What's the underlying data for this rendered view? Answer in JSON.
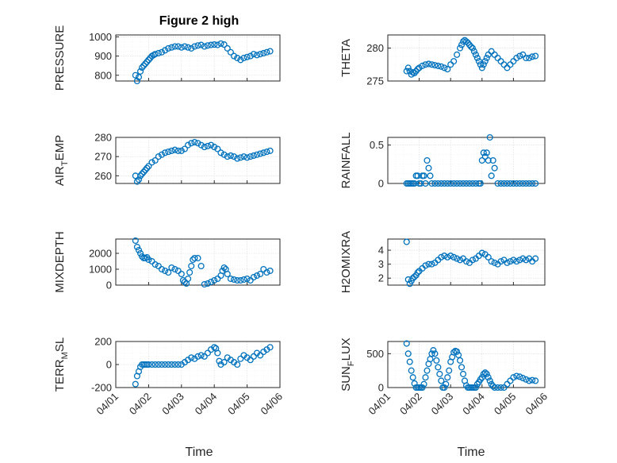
{
  "title": "Figure 2 high",
  "colors": {
    "marker": "#0072BD",
    "axis": "#262626",
    "grid": "#d9d9d9"
  },
  "chart_data": {
    "type": "scatter",
    "marker": "circle",
    "xlabel": "Time",
    "xlim": [
      0,
      5
    ],
    "x_ticks": [
      0,
      1,
      2,
      3,
      4,
      5
    ],
    "x_tick_labels": [
      "04/01",
      "04/02",
      "04/03",
      "04/04",
      "04/05",
      "04/06"
    ],
    "panels": [
      {
        "id": "pressure",
        "ylabel": "PRESSURE",
        "ylabel_sub": "",
        "ylabel_rest": "",
        "ylim": [
          770,
          1010
        ],
        "y_ticks": [
          800,
          900,
          1000
        ],
        "y_tick_labels": [
          "800",
          "900",
          "1000"
        ],
        "x": [
          0.6,
          0.65,
          0.7,
          0.75,
          0.8,
          0.85,
          0.9,
          0.95,
          1.0,
          1.05,
          1.1,
          1.15,
          1.2,
          1.3,
          1.4,
          1.5,
          1.6,
          1.7,
          1.8,
          1.9,
          2.0,
          2.1,
          2.2,
          2.3,
          2.4,
          2.5,
          2.6,
          2.7,
          2.8,
          2.9,
          3.0,
          3.1,
          3.2,
          3.3,
          3.4,
          3.5,
          3.6,
          3.7,
          3.8,
          3.9,
          4.0,
          4.1,
          4.2,
          4.3,
          4.4,
          4.5,
          4.6,
          4.7
        ],
        "y": [
          800,
          770,
          790,
          820,
          840,
          850,
          860,
          870,
          880,
          890,
          900,
          905,
          910,
          915,
          920,
          930,
          940,
          945,
          950,
          950,
          945,
          950,
          945,
          940,
          950,
          955,
          958,
          950,
          955,
          958,
          960,
          958,
          965,
          960,
          940,
          920,
          900,
          890,
          880,
          890,
          895,
          900,
          910,
          905,
          910,
          915,
          920,
          925
        ]
      },
      {
        "id": "theta",
        "ylabel": "THETA",
        "ylabel_sub": "",
        "ylabel_rest": "",
        "ylim": [
          275,
          282
        ],
        "y_ticks": [
          275,
          280
        ],
        "y_tick_labels": [
          "275",
          "280"
        ],
        "x": [
          0.6,
          0.65,
          0.7,
          0.75,
          0.8,
          0.85,
          0.9,
          0.95,
          1.0,
          1.1,
          1.2,
          1.3,
          1.4,
          1.5,
          1.6,
          1.7,
          1.8,
          1.9,
          2.0,
          2.1,
          2.2,
          2.3,
          2.35,
          2.4,
          2.45,
          2.5,
          2.55,
          2.6,
          2.65,
          2.7,
          2.75,
          2.8,
          2.85,
          2.9,
          2.95,
          3.0,
          3.05,
          3.1,
          3.15,
          3.2,
          3.3,
          3.4,
          3.5,
          3.6,
          3.7,
          3.8,
          3.9,
          4.0,
          4.1,
          4.2,
          4.3,
          4.4,
          4.5,
          4.6,
          4.7
        ],
        "y": [
          276.5,
          277,
          276.5,
          276,
          276.3,
          276.2,
          276.5,
          276.8,
          277,
          277.3,
          277.5,
          277.6,
          277.5,
          277.4,
          277.3,
          277.2,
          277,
          276.8,
          277.5,
          278,
          279,
          280,
          280.5,
          281,
          281.2,
          281,
          280.8,
          280.5,
          280.2,
          280,
          279.5,
          279,
          278.5,
          278,
          277.5,
          277,
          277.5,
          278,
          278.5,
          279,
          279.5,
          279,
          278.5,
          278,
          277.5,
          277,
          277.5,
          278,
          278.5,
          278.8,
          279,
          278.5,
          278.5,
          278.7,
          278.8
        ]
      },
      {
        "id": "air-temp",
        "ylabel": "AIR",
        "ylabel_sub": "T",
        "ylabel_rest": "EMP",
        "ylim": [
          256,
          280
        ],
        "y_ticks": [
          260,
          270,
          280
        ],
        "y_tick_labels": [
          "260",
          "270",
          "280"
        ],
        "x": [
          0.6,
          0.65,
          0.7,
          0.75,
          0.8,
          0.85,
          0.9,
          0.95,
          1.0,
          1.1,
          1.2,
          1.3,
          1.4,
          1.5,
          1.6,
          1.7,
          1.8,
          1.9,
          2.0,
          2.1,
          2.2,
          2.3,
          2.4,
          2.5,
          2.6,
          2.7,
          2.8,
          2.9,
          3.0,
          3.1,
          3.2,
          3.3,
          3.4,
          3.5,
          3.6,
          3.7,
          3.8,
          3.9,
          4.0,
          4.1,
          4.2,
          4.3,
          4.4,
          4.5,
          4.6,
          4.7
        ],
        "y": [
          260,
          257,
          258,
          260,
          261,
          262,
          263,
          264,
          265,
          267,
          268,
          270,
          271,
          272,
          272.5,
          273,
          273.5,
          273,
          273,
          274,
          276,
          277,
          277.5,
          277,
          276,
          275,
          275.5,
          276,
          275,
          274,
          272,
          271,
          270,
          270.5,
          270,
          269,
          269.5,
          270,
          269.5,
          270,
          270.5,
          271,
          271.5,
          272,
          272.5,
          273
        ]
      },
      {
        "id": "rainfall",
        "ylabel": "RAINFALL",
        "ylabel_sub": "",
        "ylabel_rest": "",
        "ylim": [
          0,
          0.6
        ],
        "y_ticks": [
          0,
          0.5
        ],
        "y_tick_labels": [
          "0",
          "0.5"
        ],
        "x": [
          0.6,
          0.65,
          0.7,
          0.75,
          0.8,
          0.85,
          0.9,
          0.95,
          1.0,
          1.05,
          1.1,
          1.15,
          1.2,
          1.25,
          1.3,
          1.35,
          1.4,
          1.5,
          1.6,
          1.7,
          1.8,
          1.9,
          2.0,
          2.1,
          2.2,
          2.3,
          2.4,
          2.5,
          2.6,
          2.7,
          2.8,
          2.9,
          2.95,
          3.0,
          3.05,
          3.1,
          3.15,
          3.2,
          3.25,
          3.3,
          3.35,
          3.4,
          3.5,
          3.6,
          3.7,
          3.8,
          3.9,
          4.0,
          4.1,
          4.2,
          4.3,
          4.4,
          4.5,
          4.6,
          4.7
        ],
        "y": [
          0,
          0,
          0,
          0,
          0,
          0,
          0.1,
          0.1,
          0,
          0,
          0.1,
          0.1,
          0,
          0.3,
          0.2,
          0.1,
          0,
          0,
          0,
          0,
          0,
          0,
          0,
          0,
          0,
          0,
          0,
          0,
          0,
          0,
          0,
          0,
          0,
          0.3,
          0.4,
          0.35,
          0.4,
          0.3,
          0.6,
          0.1,
          0.3,
          0.2,
          0,
          0,
          0,
          0,
          0,
          0,
          0,
          0,
          0,
          0,
          0,
          0,
          0
        ]
      },
      {
        "id": "mixdepth",
        "ylabel": "MIXDEPTH",
        "ylabel_sub": "",
        "ylabel_rest": "",
        "ylim": [
          0,
          2900
        ],
        "y_ticks": [
          0,
          1000,
          2000
        ],
        "y_tick_labels": [
          "0",
          "1000",
          "2000"
        ],
        "x": [
          0.6,
          0.65,
          0.7,
          0.75,
          0.8,
          0.85,
          0.9,
          0.95,
          1.0,
          1.1,
          1.2,
          1.3,
          1.4,
          1.5,
          1.6,
          1.7,
          1.8,
          1.9,
          2.0,
          2.05,
          2.1,
          2.15,
          2.2,
          2.25,
          2.3,
          2.35,
          2.4,
          2.5,
          2.6,
          2.7,
          2.8,
          2.9,
          3.0,
          3.1,
          3.2,
          3.25,
          3.3,
          3.35,
          3.4,
          3.5,
          3.6,
          3.7,
          3.8,
          3.9,
          4.0,
          4.1,
          4.2,
          4.3,
          4.4,
          4.5,
          4.6,
          4.7
        ],
        "y": [
          2800,
          2400,
          2200,
          2000,
          1800,
          1700,
          1700,
          1750,
          1600,
          1500,
          1300,
          1200,
          1000,
          900,
          800,
          1100,
          1000,
          900,
          700,
          300,
          200,
          100,
          400,
          800,
          1200,
          1600,
          1700,
          1700,
          1200,
          50,
          100,
          200,
          300,
          400,
          600,
          900,
          1100,
          1000,
          700,
          400,
          350,
          300,
          300,
          350,
          400,
          300,
          500,
          600,
          700,
          1000,
          800,
          900
        ]
      },
      {
        "id": "h2omixra",
        "ylabel": "H2OMIXRA",
        "ylabel_sub": "",
        "ylabel_rest": "",
        "ylim": [
          1.5,
          4.8
        ],
        "y_ticks": [
          2,
          3,
          4
        ],
        "y_tick_labels": [
          "2",
          "3",
          "4"
        ],
        "x": [
          0.6,
          0.65,
          0.7,
          0.75,
          0.8,
          0.85,
          0.9,
          0.95,
          1.0,
          1.1,
          1.2,
          1.3,
          1.4,
          1.5,
          1.6,
          1.7,
          1.8,
          1.9,
          2.0,
          2.1,
          2.2,
          2.3,
          2.4,
          2.5,
          2.6,
          2.7,
          2.8,
          2.9,
          3.0,
          3.1,
          3.2,
          3.3,
          3.4,
          3.5,
          3.6,
          3.7,
          3.8,
          3.9,
          4.0,
          4.1,
          4.2,
          4.3,
          4.4,
          4.5,
          4.6,
          4.7
        ],
        "y": [
          4.6,
          1.9,
          1.6,
          1.8,
          2,
          2.1,
          2.2,
          2.4,
          2.5,
          2.7,
          2.9,
          3,
          3,
          3.1,
          3.3,
          3.5,
          3.6,
          3.5,
          3.6,
          3.5,
          3.4,
          3.3,
          3.4,
          3.2,
          3.1,
          3.3,
          3.4,
          3.6,
          3.8,
          3.7,
          3.5,
          3.2,
          3.1,
          3,
          3.2,
          3.3,
          3.1,
          3.2,
          3.3,
          3.2,
          3.3,
          3.4,
          3.3,
          3.4,
          3.2,
          3.4
        ]
      },
      {
        "id": "terrmsl",
        "ylabel": "TERR",
        "ylabel_sub": "M",
        "ylabel_rest": "SL",
        "ylim": [
          -200,
          200
        ],
        "y_ticks": [
          -200,
          0,
          200
        ],
        "y_tick_labels": [
          "-200",
          "0",
          "200"
        ],
        "x": [
          0.6,
          0.65,
          0.7,
          0.75,
          0.8,
          0.85,
          0.9,
          0.95,
          1.0,
          1.1,
          1.2,
          1.3,
          1.4,
          1.5,
          1.6,
          1.7,
          1.8,
          1.9,
          2.0,
          2.1,
          2.2,
          2.3,
          2.4,
          2.5,
          2.6,
          2.7,
          2.8,
          2.9,
          3.0,
          3.05,
          3.1,
          3.15,
          3.2,
          3.3,
          3.4,
          3.5,
          3.6,
          3.7,
          3.8,
          3.9,
          4.0,
          4.1,
          4.2,
          4.3,
          4.4,
          4.5,
          4.6,
          4.7
        ],
        "y": [
          -170,
          -100,
          -60,
          -20,
          0,
          0,
          0,
          0,
          0,
          0,
          0,
          0,
          0,
          0,
          0,
          0,
          0,
          0,
          0,
          20,
          40,
          60,
          50,
          70,
          80,
          70,
          100,
          130,
          150,
          140,
          100,
          30,
          0,
          20,
          60,
          40,
          20,
          0,
          50,
          80,
          60,
          40,
          70,
          100,
          80,
          110,
          130,
          150
        ]
      },
      {
        "id": "sunflux",
        "ylabel": "SUN",
        "ylabel_sub": "F",
        "ylabel_rest": "LUX",
        "ylim": [
          0,
          680
        ],
        "y_ticks": [
          0,
          500
        ],
        "y_tick_labels": [
          "0",
          "500"
        ],
        "x": [
          0.6,
          0.65,
          0.7,
          0.75,
          0.8,
          0.85,
          0.9,
          0.95,
          1.0,
          1.05,
          1.1,
          1.15,
          1.2,
          1.25,
          1.3,
          1.35,
          1.4,
          1.45,
          1.5,
          1.55,
          1.6,
          1.65,
          1.7,
          1.75,
          1.8,
          1.85,
          1.9,
          1.95,
          2.0,
          2.05,
          2.1,
          2.15,
          2.2,
          2.25,
          2.3,
          2.35,
          2.4,
          2.45,
          2.5,
          2.55,
          2.6,
          2.65,
          2.7,
          2.75,
          2.8,
          2.85,
          2.9,
          2.95,
          3.0,
          3.05,
          3.1,
          3.15,
          3.2,
          3.25,
          3.3,
          3.35,
          3.4,
          3.5,
          3.6,
          3.7,
          3.8,
          3.9,
          4.0,
          4.1,
          4.2,
          4.3,
          4.4,
          4.5,
          4.6,
          4.7
        ],
        "y": [
          650,
          500,
          380,
          250,
          150,
          60,
          0,
          0,
          0,
          0,
          0,
          50,
          150,
          250,
          350,
          420,
          500,
          550,
          500,
          400,
          300,
          200,
          100,
          0,
          0,
          50,
          150,
          250,
          380,
          450,
          520,
          540,
          530,
          480,
          400,
          300,
          200,
          100,
          30,
          0,
          0,
          0,
          0,
          0,
          0,
          50,
          80,
          120,
          150,
          200,
          220,
          200,
          150,
          100,
          50,
          20,
          0,
          0,
          0,
          0,
          50,
          100,
          150,
          170,
          160,
          140,
          120,
          100,
          110,
          100
        ]
      }
    ]
  }
}
